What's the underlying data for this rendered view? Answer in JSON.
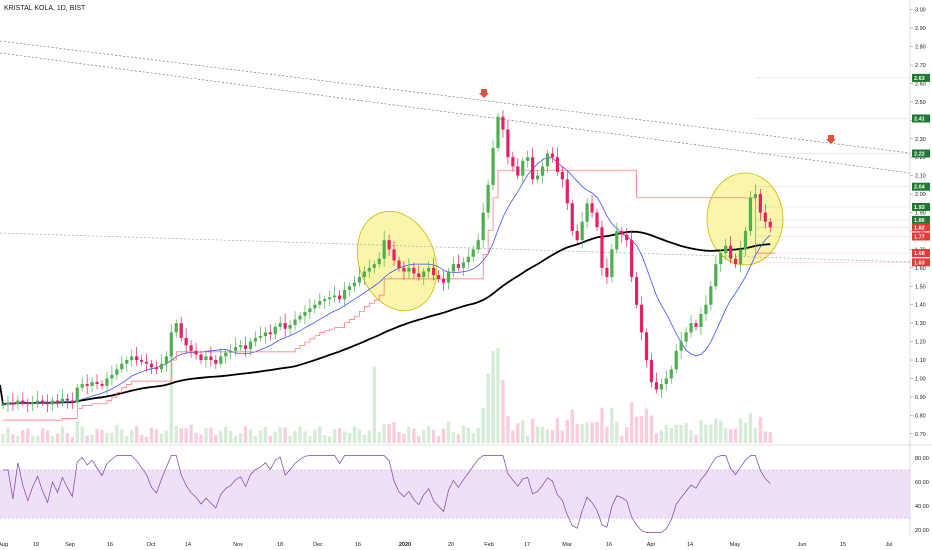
{
  "title": "KRISTAL KOLA, 1D, BIST",
  "colors": {
    "up": "#4caf50",
    "down": "#e91e63",
    "sma_fast": "#3f51ff",
    "sma_slow": "#000000",
    "stop_line": "#ff6b6b",
    "highlight_fill": "#f5f074",
    "highlight_stroke": "#c9b800",
    "rsi_line": "#7b3f9e",
    "rsi_band": "#efe0fa",
    "arrow": "#e0523a",
    "label_green": "#1e7a32",
    "label_red": "#e53935"
  },
  "chart_data": [
    {
      "type": "candlestick",
      "title": "KRISTAL KOLA, 1D, BIST",
      "price_axis_ticks": [
        "3.00",
        "2.90",
        "2.80",
        "2.70",
        "2.60",
        "2.50",
        "2.40",
        "2.30",
        "2.20",
        "2.10",
        "2.00",
        "1.90",
        "1.80",
        "1.70",
        "1.60",
        "1.50",
        "1.40",
        "1.30",
        "1.20",
        "1.10",
        "1.00",
        "0.90",
        "0.80",
        "0.70"
      ],
      "price_labels": [
        {
          "text": "2.63",
          "value": 2.63,
          "color": "green"
        },
        {
          "text": "2.41",
          "value": 2.41,
          "color": "green"
        },
        {
          "text": "2.22",
          "value": 2.22,
          "color": "green"
        },
        {
          "text": "2.04",
          "value": 2.04,
          "color": "green"
        },
        {
          "text": "1.93",
          "value": 1.93,
          "color": "green"
        },
        {
          "text": "1.86",
          "value": 1.86,
          "color": "green"
        },
        {
          "text": "1.82",
          "value": 1.82,
          "color": "red"
        },
        {
          "text": "1.77",
          "value": 1.77,
          "color": "red"
        },
        {
          "text": "1.68",
          "value": 1.68,
          "color": "red"
        },
        {
          "text": "1.63",
          "value": 1.63,
          "color": "red"
        }
      ],
      "time_axis_ticks": [
        "Aug",
        "19",
        "Sep",
        "16",
        "Oct",
        "14",
        "Nov",
        "18",
        "Dec",
        "16",
        "2020",
        "20",
        "Feb",
        "17",
        "Mar",
        "16",
        "Apr",
        "14",
        "May",
        "Jun",
        "15",
        "Jul"
      ],
      "ylim": [
        0.65,
        3.02
      ],
      "series_close": [
        0.86,
        0.87,
        0.86,
        0.88,
        0.87,
        0.86,
        0.87,
        0.88,
        0.87,
        0.86,
        0.88,
        0.87,
        0.89,
        0.88,
        0.87,
        0.95,
        0.97,
        0.96,
        0.98,
        0.97,
        0.96,
        1.0,
        1.02,
        1.05,
        1.08,
        1.1,
        1.12,
        1.1,
        1.09,
        1.08,
        1.06,
        1.05,
        1.08,
        1.12,
        1.25,
        1.3,
        1.22,
        1.18,
        1.15,
        1.13,
        1.1,
        1.12,
        1.1,
        1.08,
        1.12,
        1.14,
        1.15,
        1.17,
        1.18,
        1.16,
        1.2,
        1.22,
        1.23,
        1.25,
        1.24,
        1.28,
        1.3,
        1.27,
        1.29,
        1.32,
        1.34,
        1.36,
        1.38,
        1.4,
        1.42,
        1.43,
        1.44,
        1.45,
        1.43,
        1.48,
        1.5,
        1.52,
        1.55,
        1.58,
        1.6,
        1.62,
        1.65,
        1.75,
        1.7,
        1.64,
        1.6,
        1.58,
        1.6,
        1.57,
        1.55,
        1.58,
        1.6,
        1.56,
        1.54,
        1.52,
        1.58,
        1.62,
        1.6,
        1.63,
        1.66,
        1.7,
        1.75,
        1.9,
        2.05,
        2.25,
        2.42,
        2.35,
        2.2,
        2.15,
        2.1,
        2.18,
        2.2,
        2.08,
        2.1,
        2.15,
        2.22,
        2.2,
        2.12,
        2.08,
        1.95,
        1.8,
        1.75,
        1.85,
        1.95,
        1.9,
        1.82,
        1.6,
        1.55,
        1.7,
        1.8,
        1.78,
        1.75,
        1.55,
        1.4,
        1.25,
        1.1,
        0.98,
        0.94,
        0.97,
        1.0,
        1.05,
        1.15,
        1.2,
        1.25,
        1.3,
        1.28,
        1.35,
        1.4,
        1.5,
        1.62,
        1.68,
        1.72,
        1.65,
        1.62,
        1.7,
        1.8,
        1.98,
        2.0,
        1.9,
        1.85,
        1.82
      ],
      "rsi_ticks": [
        "80.00",
        "60.00",
        "40.00",
        "20.00"
      ],
      "rsi_band": [
        30,
        70
      ]
    }
  ]
}
